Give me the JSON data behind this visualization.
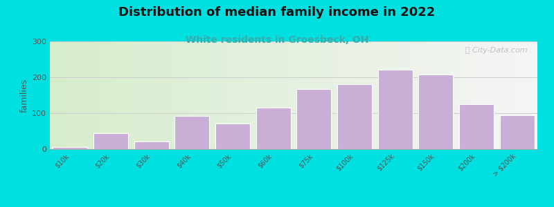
{
  "title": "Distribution of median family income in 2022",
  "subtitle": "White residents in Groesbeck, OH",
  "categories": [
    "$10k",
    "$20k",
    "$30k",
    "$40k",
    "$50k",
    "$60k",
    "$75k",
    "$100k",
    "$125k",
    "$150k",
    "$200k",
    "> $200k"
  ],
  "values": [
    5,
    45,
    22,
    92,
    72,
    115,
    168,
    180,
    222,
    208,
    125,
    95
  ],
  "bar_color": "#c9aed6",
  "bar_edge_color": "#ffffff",
  "ylabel": "families",
  "ylim": [
    0,
    300
  ],
  "yticks": [
    0,
    100,
    200,
    300
  ],
  "background_outer": "#00e0e0",
  "background_inner_left": "#d6edcc",
  "background_inner_right": "#f5f5f5",
  "title_fontsize": 13,
  "subtitle_fontsize": 10,
  "subtitle_color": "#3aabab",
  "watermark_text": "⚿ City-Data.com",
  "watermark_color": "#b8b8b8",
  "grid_color": "#cccccc",
  "tick_label_fontsize": 7,
  "bar_width": 0.85,
  "title_color": "#111111"
}
